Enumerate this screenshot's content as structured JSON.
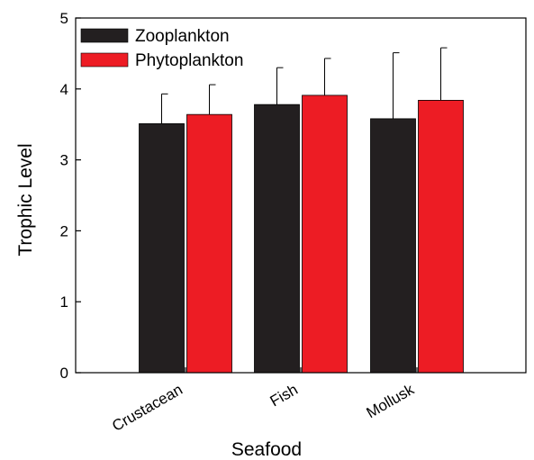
{
  "chart_data": {
    "type": "bar",
    "title": "",
    "xlabel": "Seafood",
    "ylabel": "Trophic Level",
    "categories": [
      "Crustacean",
      "Fish",
      "Mollusk"
    ],
    "ylim": [
      0,
      5
    ],
    "yticks": [
      "0",
      "1",
      "2",
      "3",
      "4",
      "5"
    ],
    "grid": false,
    "legend_position": "top-left",
    "series": [
      {
        "name": "Zooplankton",
        "color": "#231f20",
        "values": [
          3.51,
          3.78,
          3.58
        ],
        "error_upper": [
          0.42,
          0.52,
          0.93
        ]
      },
      {
        "name": "Phytoplankton",
        "color": "#ed1c24",
        "values": [
          3.64,
          3.91,
          3.84
        ],
        "error_upper": [
          0.42,
          0.52,
          0.74
        ]
      }
    ]
  }
}
